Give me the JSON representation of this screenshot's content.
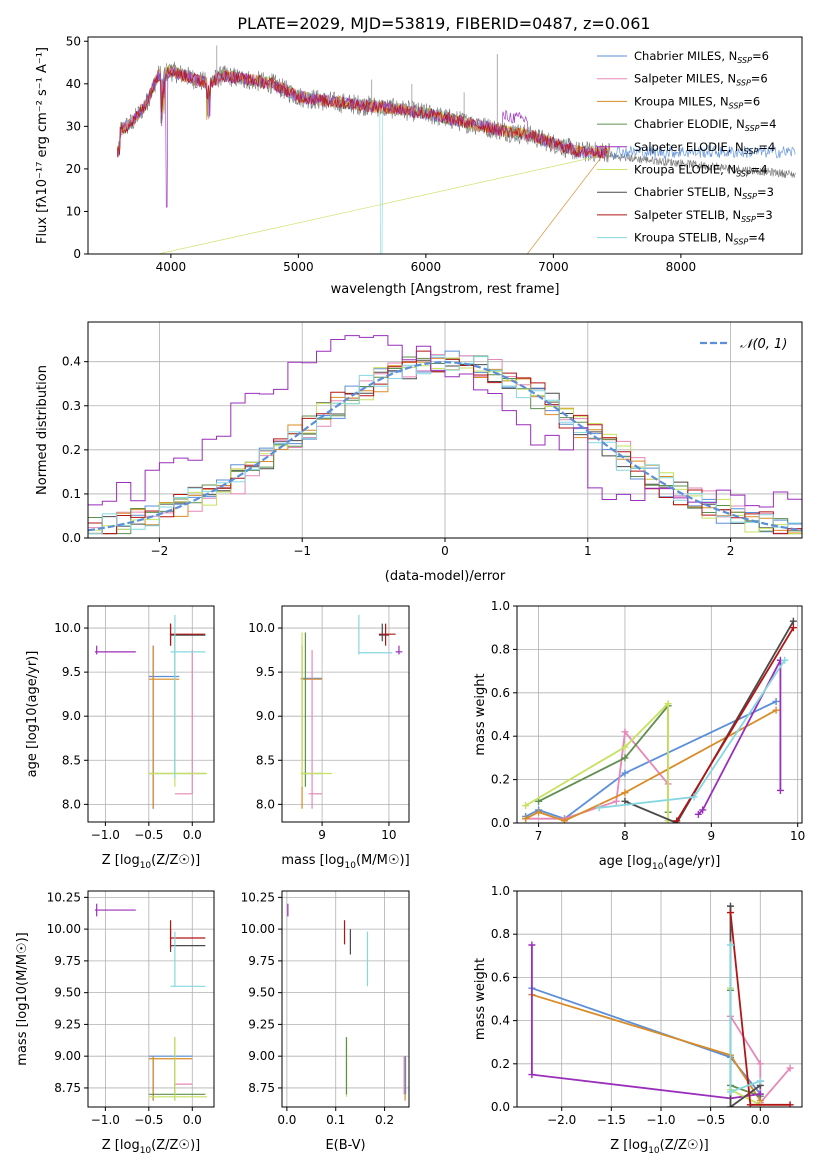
{
  "title": "PLATE=2029, MJD=53819, FIBERID=0487, z=0.061",
  "colors": {
    "chabrier_miles": "#5b8fd9",
    "salpeter_miles": "#e688b8",
    "kroupa_miles": "#d98b26",
    "chabrier_elodie": "#5f8f4f",
    "salpeter_elodie": "#9a2fbb",
    "kroupa_elodie": "#c6e25f",
    "chabrier_stelib": "#4a4a4a",
    "salpeter_stelib": "#b31515",
    "kroupa_stelib": "#86d8e0",
    "gauss": "#5b8fd9"
  },
  "chart_data": [
    {
      "type": "line",
      "panel": "spectrum",
      "title": "PLATE=2029, MJD=53819, FIBERID=0487, z=0.061",
      "xlabel": "wavelength [Angstrom, rest frame]",
      "ylabel": "Flux [fλ10⁻¹⁷ erg cm⁻² s⁻¹ A⁻¹]",
      "xlim": [
        3350,
        8950
      ],
      "ylim": [
        0,
        51
      ],
      "xticks": [
        "4000",
        "5000",
        "6000",
        "7000",
        "8000"
      ],
      "yticks": [
        "0",
        "10",
        "20",
        "30",
        "40",
        "50"
      ],
      "legend_position": "top-right",
      "continuum": {
        "x": [
          3600,
          3700,
          3800,
          3900,
          4000,
          4100,
          4200,
          4300,
          4400,
          4600,
          4800,
          5000,
          5200,
          5500,
          5800,
          6000,
          6300,
          6600,
          6800,
          7000,
          7200,
          7300,
          7400
        ],
        "y": [
          29,
          31,
          35,
          42,
          43,
          42,
          41,
          40,
          42,
          41,
          40,
          37,
          36,
          35,
          34,
          33,
          31,
          29,
          28,
          26,
          24,
          24,
          24
        ]
      },
      "series": [
        {
          "name": "Chabrier MILES, N_SSP=6",
          "legend": "Chabrier MILES, N",
          "sub": "SSP",
          "eq": "=6"
        },
        {
          "name": "Salpeter MILES, N_SSP=6",
          "legend": "Salpeter MILES, N",
          "sub": "SSP",
          "eq": "=6"
        },
        {
          "name": "Kroupa MILES, N_SSP=6",
          "legend": "Kroupa MILES, N",
          "sub": "SSP",
          "eq": "=6"
        },
        {
          "name": "Chabrier ELODIE, N_SSP=4",
          "legend": "Chabrier ELODIE, N",
          "sub": "SSP",
          "eq": "=4"
        },
        {
          "name": "Salpeter ELODIE, N_SSP=4",
          "legend": "Salpeter ELODIE, N",
          "sub": "SSP",
          "eq": "=4"
        },
        {
          "name": "Kroupa ELODIE, N_SSP=4",
          "legend": "Kroupa ELODIE, N",
          "sub": "SSP",
          "eq": "=4"
        },
        {
          "name": "Chabrier STELIB, N_SSP=3",
          "legend": "Chabrier STELIB, N",
          "sub": "SSP",
          "eq": "=3"
        },
        {
          "name": "Salpeter STELIB, N_SSP=3",
          "legend": "Salpeter STELIB, N",
          "sub": "SSP",
          "eq": "=3"
        },
        {
          "name": "Kroupa STELIB, N_SSP=4",
          "legend": "Kroupa STELIB, N",
          "sub": "SSP",
          "eq": "=4"
        }
      ]
    },
    {
      "type": "histogram",
      "panel": "residuals",
      "xlabel": "(data-model)/error",
      "ylabel": "Normed distribution",
      "xlim": [
        -2.5,
        2.5
      ],
      "ylim": [
        0,
        0.49
      ],
      "xticks": [
        "−2",
        "−1",
        "0",
        "1",
        "2"
      ],
      "yticks": [
        "0.0",
        "0.1",
        "0.2",
        "0.3",
        "0.4"
      ],
      "grid": true,
      "legend_position": "top-right",
      "gauss_label": "𝒩(0, 1)",
      "gauss": {
        "mu": 0,
        "sigma": 1
      }
    },
    {
      "type": "errorbar",
      "panel": "age-Z",
      "xlabel": "Z [log10(Z/Z☉)]",
      "xlabel_main": "Z [log",
      "xlabel_tail": "(Z/Z☉)]",
      "ylabel": "age  [log10(age/yr)]",
      "xlim": [
        -1.2,
        0.25
      ],
      "ylim": [
        7.8,
        10.25
      ],
      "xticks": [
        "−1.0",
        "−0.5",
        "0.0"
      ],
      "yticks": [
        "8.0",
        "8.5",
        "9.0",
        "9.5",
        "10.0"
      ],
      "grid": true
    },
    {
      "type": "errorbar",
      "panel": "age-mass",
      "xlabel": "mass [log10(M/M☉)]",
      "xlabel_main": "mass [log",
      "xlabel_tail": "(M/M☉)]",
      "xlim": [
        8.4,
        10.3
      ],
      "ylim": [
        7.8,
        10.25
      ],
      "xticks": [
        "9",
        "10"
      ],
      "yticks": [
        "8.0",
        "8.5",
        "9.0",
        "9.5",
        "10.0"
      ],
      "grid": true
    },
    {
      "type": "line",
      "panel": "weight-age",
      "xlabel": "age  [log10(age/yr)]",
      "xlabel_main": "age  [log",
      "xlabel_tail": "(age/yr)]",
      "ylabel": "mass weight",
      "xlim": [
        6.75,
        10.05
      ],
      "ylim": [
        0,
        1.0
      ],
      "xticks": [
        "7",
        "8",
        "9",
        "10"
      ],
      "yticks": [
        "0.0",
        "0.2",
        "0.4",
        "0.6",
        "0.8",
        "1.0"
      ],
      "grid": true,
      "series": [
        {
          "name": "Chabrier MILES",
          "x": [
            6.85,
            7.0,
            7.3,
            8.0,
            9.75
          ],
          "y": [
            0.03,
            0.06,
            0.02,
            0.23,
            0.56
          ]
        },
        {
          "name": "Salpeter MILES",
          "x": [
            6.85,
            7.3,
            7.9,
            8.0,
            8.5
          ],
          "y": [
            0.02,
            0.02,
            0.1,
            0.42,
            0.18
          ]
        },
        {
          "name": "Kroupa MILES",
          "x": [
            6.85,
            7.0,
            7.3,
            8.0,
            9.75
          ],
          "y": [
            0.02,
            0.05,
            0.01,
            0.14,
            0.52
          ]
        },
        {
          "name": "Chabrier ELODIE",
          "x": [
            7.0,
            8.0,
            8.5,
            8.5
          ],
          "y": [
            0.1,
            0.3,
            0.54,
            0.05
          ]
        },
        {
          "name": "Salpeter ELODIE",
          "x": [
            8.85,
            8.9,
            9.8,
            9.8
          ],
          "y": [
            0.04,
            0.06,
            0.75,
            0.15
          ]
        },
        {
          "name": "Kroupa ELODIE",
          "x": [
            6.85,
            8.0,
            8.5,
            8.5
          ],
          "y": [
            0.08,
            0.35,
            0.55,
            0.01
          ]
        },
        {
          "name": "Chabrier STELIB",
          "x": [
            8.0,
            8.6,
            9.95
          ],
          "y": [
            0.1,
            0.0,
            0.93
          ]
        },
        {
          "name": "Salpeter STELIB",
          "x": [
            8.6,
            9.95
          ],
          "y": [
            0.01,
            0.9
          ]
        },
        {
          "name": "Kroupa STELIB",
          "x": [
            7.7,
            8.8,
            9.85
          ],
          "y": [
            0.07,
            0.12,
            0.75
          ]
        }
      ]
    },
    {
      "type": "errorbar",
      "panel": "mass-Z",
      "xlabel": "Z [log10(Z/Z☉)]",
      "xlabel_main": "Z [log",
      "xlabel_tail": "(Z/Z☉)]",
      "ylabel": "mass [log10(M/M☉)]",
      "xlim": [
        -1.2,
        0.25
      ],
      "ylim": [
        8.6,
        10.3
      ],
      "xticks": [
        "−1.0",
        "−0.5",
        "0.0"
      ],
      "yticks": [
        "8.75",
        "9.00",
        "9.25",
        "9.50",
        "9.75",
        "10.00",
        "10.25"
      ],
      "grid": true
    },
    {
      "type": "errorbar",
      "panel": "mass-EBV",
      "xlabel": "E(B-V)",
      "xlim": [
        -0.01,
        0.25
      ],
      "ylim": [
        8.6,
        10.3
      ],
      "xticks": [
        "0.0",
        "0.1",
        "0.2"
      ],
      "yticks": [
        "8.75",
        "9.00",
        "9.25",
        "9.50",
        "9.75",
        "10.00",
        "10.25"
      ],
      "grid": true
    },
    {
      "type": "line",
      "panel": "weight-Z",
      "xlabel": "Z [log10(Z/Z☉)]",
      "xlabel_main": "Z [log",
      "xlabel_tail": "(Z/Z☉)]",
      "ylabel": "mass weight",
      "xlim": [
        -2.45,
        0.42
      ],
      "ylim": [
        0,
        1.0
      ],
      "xticks": [
        "−2.0",
        "−1.5",
        "−1.0",
        "−0.5",
        "0.0"
      ],
      "yticks": [
        "0.0",
        "0.2",
        "0.4",
        "0.6",
        "0.8",
        "1.0"
      ],
      "grid": true,
      "series": [
        {
          "name": "Chabrier MILES",
          "x": [
            -2.3,
            -0.3,
            0.0,
            0.0
          ],
          "y": [
            0.55,
            0.23,
            0.06,
            0.12
          ]
        },
        {
          "name": "Salpeter MILES",
          "x": [
            -0.3,
            0.0,
            0.0,
            0.3
          ],
          "y": [
            0.42,
            0.2,
            0.02,
            0.18
          ]
        },
        {
          "name": "Kroupa MILES",
          "x": [
            -2.3,
            -0.3,
            0.0,
            0.0
          ],
          "y": [
            0.52,
            0.24,
            0.03,
            0.01
          ]
        },
        {
          "name": "Chabrier ELODIE",
          "x": [
            -0.3,
            -0.3,
            0.0
          ],
          "y": [
            0.54,
            0.1,
            0.05
          ]
        },
        {
          "name": "Salpeter ELODIE",
          "x": [
            -2.3,
            -2.3,
            -0.3,
            0.0
          ],
          "y": [
            0.75,
            0.15,
            0.04,
            0.06
          ]
        },
        {
          "name": "Kroupa ELODIE",
          "x": [
            -0.3,
            -0.3,
            0.0
          ],
          "y": [
            0.55,
            0.08,
            0.01
          ]
        },
        {
          "name": "Chabrier STELIB",
          "x": [
            -0.3,
            -0.3,
            0.0
          ],
          "y": [
            0.93,
            0.0,
            0.1
          ]
        },
        {
          "name": "Salpeter STELIB",
          "x": [
            -0.3,
            -0.1,
            0.3
          ],
          "y": [
            0.9,
            0.01,
            0.01
          ]
        },
        {
          "name": "Kroupa STELIB",
          "x": [
            -0.3,
            -0.3,
            0.0
          ],
          "y": [
            0.75,
            0.07,
            0.12
          ]
        }
      ]
    }
  ],
  "errorbars": {
    "ageZ": [
      {
        "c": "chabrier_miles",
        "x": -0.45,
        "xe": [
          -0.5,
          -0.15
        ],
        "y": 9.45,
        "ye": [
          7.95,
          9.8
        ]
      },
      {
        "c": "salpeter_miles",
        "x": 0.0,
        "xe": [
          -0.2,
          0.0
        ],
        "y": 8.12,
        "ye": [
          8.12,
          9.75
        ]
      },
      {
        "c": "kroupa_miles",
        "x": -0.45,
        "xe": [
          -0.5,
          -0.15
        ],
        "y": 9.42,
        "ye": [
          7.95,
          9.8
        ]
      },
      {
        "c": "chabrier_elodie",
        "x": -0.2,
        "xe": [
          -0.5,
          0.15
        ],
        "y": 8.35,
        "ye": [
          8.35,
          9.95
        ]
      },
      {
        "c": "salpeter_elodie",
        "x": -1.1,
        "xe": [
          -1.12,
          -0.65
        ],
        "y": 9.73,
        "ye": [
          9.7,
          9.8
        ]
      },
      {
        "c": "kroupa_elodie",
        "x": -0.2,
        "xe": [
          -0.5,
          0.17
        ],
        "y": 8.35,
        "ye": [
          8.2,
          9.95
        ]
      },
      {
        "c": "chabrier_stelib",
        "x": -0.25,
        "xe": [
          -0.25,
          0.15
        ],
        "y": 9.92,
        "ye": [
          9.8,
          10.05
        ]
      },
      {
        "c": "salpeter_stelib",
        "x": -0.25,
        "xe": [
          -0.25,
          0.15
        ],
        "y": 9.93,
        "ye": [
          9.8,
          10.05
        ]
      },
      {
        "c": "kroupa_stelib",
        "x": -0.2,
        "xe": [
          -0.25,
          0.15
        ],
        "y": 9.73,
        "ye": [
          8.3,
          10.15
        ]
      }
    ],
    "ageMass": [
      {
        "c": "chabrier_miles",
        "x": 8.7,
        "xe": [
          8.68,
          9.0
        ],
        "y": 9.43,
        "ye": [
          8.5,
          9.8
        ]
      },
      {
        "c": "salpeter_miles",
        "x": 8.85,
        "xe": [
          8.8,
          9.0
        ],
        "y": 8.12,
        "ye": [
          7.95,
          9.75
        ]
      },
      {
        "c": "kroupa_miles",
        "x": 8.7,
        "xe": [
          8.68,
          9.0
        ],
        "y": 9.42,
        "ye": [
          7.95,
          9.8
        ]
      },
      {
        "c": "chabrier_elodie",
        "x": 8.75,
        "xe": [
          8.7,
          9.0
        ],
        "y": 8.35,
        "ye": [
          8.2,
          9.95
        ]
      },
      {
        "c": "salpeter_elodie",
        "x": 10.15,
        "xe": [
          10.1,
          10.2
        ],
        "y": 9.73,
        "ye": [
          9.7,
          9.8
        ]
      },
      {
        "c": "kroupa_elodie",
        "x": 8.7,
        "xe": [
          8.68,
          9.15
        ],
        "y": 8.35,
        "ye": [
          8.2,
          9.95
        ]
      },
      {
        "c": "chabrier_stelib",
        "x": 9.9,
        "xe": [
          9.85,
          10.0
        ],
        "y": 9.92,
        "ye": [
          9.85,
          10.05
        ]
      },
      {
        "c": "salpeter_stelib",
        "x": 9.95,
        "xe": [
          9.85,
          10.1
        ],
        "y": 9.93,
        "ye": [
          9.8,
          10.05
        ]
      },
      {
        "c": "kroupa_stelib",
        "x": 9.55,
        "xe": [
          9.55,
          10.05
        ],
        "y": 9.72,
        "ye": [
          9.7,
          10.15
        ]
      }
    ],
    "massZ": [
      {
        "c": "chabrier_miles",
        "x": -0.45,
        "xe": [
          -0.5,
          0.0
        ],
        "y": 9.0,
        "ye": [
          8.65,
          9.0
        ]
      },
      {
        "c": "salpeter_miles",
        "x": -0.2,
        "xe": [
          -0.2,
          0.0
        ],
        "y": 8.78,
        "ye": [
          8.7,
          9.0
        ]
      },
      {
        "c": "kroupa_miles",
        "x": -0.45,
        "xe": [
          -0.5,
          0.0
        ],
        "y": 8.98,
        "ye": [
          8.65,
          9.0
        ]
      },
      {
        "c": "chabrier_elodie",
        "x": -0.2,
        "xe": [
          -0.5,
          0.15
        ],
        "y": 8.7,
        "ye": [
          8.65,
          9.15
        ]
      },
      {
        "c": "salpeter_elodie",
        "x": -1.1,
        "xe": [
          -1.12,
          -0.65
        ],
        "y": 10.15,
        "ye": [
          10.1,
          10.2
        ]
      },
      {
        "c": "kroupa_elodie",
        "x": -0.2,
        "xe": [
          -0.5,
          0.17
        ],
        "y": 8.68,
        "ye": [
          8.65,
          9.15
        ]
      },
      {
        "c": "chabrier_stelib",
        "x": -0.25,
        "xe": [
          -0.25,
          0.15
        ],
        "y": 9.87,
        "ye": [
          9.82,
          10.0
        ]
      },
      {
        "c": "salpeter_stelib",
        "x": -0.25,
        "xe": [
          -0.25,
          0.15
        ],
        "y": 9.93,
        "ye": [
          9.85,
          10.07
        ]
      },
      {
        "c": "kroupa_stelib",
        "x": -0.2,
        "xe": [
          -0.25,
          0.15
        ],
        "y": 9.55,
        "ye": [
          9.55,
          9.98
        ]
      }
    ],
    "massEbv": [
      {
        "c": "salpeter_elodie",
        "x": 0.002,
        "xe": [
          0.002,
          0.002
        ],
        "y": 10.15,
        "ye": [
          10.1,
          10.2
        ]
      },
      {
        "c": "salpeter_stelib",
        "x": 0.118,
        "xe": [
          0.118,
          0.118
        ],
        "y": 9.93,
        "ye": [
          9.88,
          10.07
        ]
      },
      {
        "c": "chabrier_stelib",
        "x": 0.13,
        "xe": [
          0.13,
          0.13
        ],
        "y": 9.87,
        "ye": [
          9.8,
          10.0
        ]
      },
      {
        "c": "kroupa_stelib",
        "x": 0.165,
        "xe": [
          0.165,
          0.165
        ],
        "y": 9.7,
        "ye": [
          9.55,
          9.98
        ]
      },
      {
        "c": "kroupa_elodie",
        "x": 0.122,
        "xe": [
          0.122,
          0.122
        ],
        "y": 8.8,
        "ye": [
          8.68,
          9.15
        ]
      },
      {
        "c": "chabrier_elodie",
        "x": 0.122,
        "xe": [
          0.122,
          0.122
        ],
        "y": 8.9,
        "ye": [
          8.7,
          9.15
        ]
      },
      {
        "c": "salpeter_miles",
        "x": 0.24,
        "xe": [
          0.24,
          0.24
        ],
        "y": 8.8,
        "ye": [
          8.7,
          9.0
        ]
      },
      {
        "c": "kroupa_miles",
        "x": 0.242,
        "xe": [
          0.242,
          0.242
        ],
        "y": 8.8,
        "ye": [
          8.65,
          9.0
        ]
      },
      {
        "c": "chabrier_miles",
        "x": 0.243,
        "xe": [
          0.243,
          0.243
        ],
        "y": 8.85,
        "ye": [
          8.7,
          9.0
        ]
      }
    ]
  }
}
